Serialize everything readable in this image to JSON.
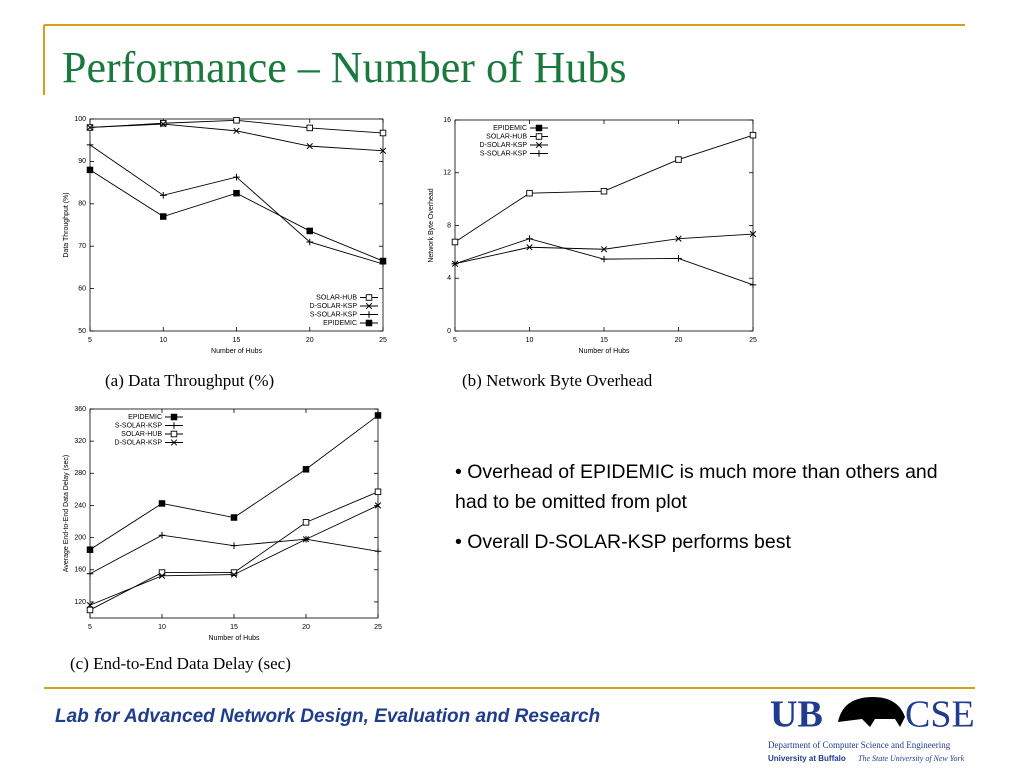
{
  "slide": {
    "title": "Performance – Number of Hubs",
    "bullets": [
      "• Overhead of EPIDEMIC is much more than others and had to be omitted from plot",
      "• Overall D-SOLAR-KSP performs best"
    ],
    "footer": "Lab for Advanced Network Design, Evaluation and Research",
    "logo": {
      "left": "UB",
      "right": "CSE",
      "department": "Department of Computer Science and Engineering",
      "university": "University at Buffalo",
      "state": "The State University of New York"
    }
  },
  "chart_data": [
    {
      "type": "line",
      "title": "(a) Data Throughput (%)",
      "x_label": "Number of Hubs",
      "y_label": "Data Throughput (%)",
      "x": [
        5,
        10,
        15,
        20,
        25
      ],
      "xlim": [
        5,
        25
      ],
      "xticks": [
        5,
        10,
        15,
        20,
        25
      ],
      "ylim": [
        50,
        100
      ],
      "yticks": [
        50,
        60,
        70,
        80,
        90,
        100
      ],
      "legend": "lower right",
      "series": [
        {
          "name": "SOLAR-HUB",
          "color": "#000000",
          "marker": "square-open",
          "values": [
            98,
            99,
            99.7,
            97.9,
            96.7
          ]
        },
        {
          "name": "D-SOLAR-KSP",
          "color": "#000000",
          "marker": "x",
          "values": [
            98,
            98.8,
            97.2,
            93.6,
            92.5
          ]
        },
        {
          "name": "S-SOLAR-KSP",
          "color": "#000000",
          "marker": "plus",
          "values": [
            93.9,
            82,
            86.3,
            71,
            65.8
          ]
        },
        {
          "name": "EPIDEMIC",
          "color": "#000000",
          "marker": "square",
          "values": [
            88,
            77,
            82.5,
            73.6,
            66.5
          ]
        }
      ]
    },
    {
      "type": "line",
      "title": "(b) Network Byte Overhead",
      "x_label": "Number of Hubs",
      "y_label": "Network Byte Overhead",
      "x": [
        5,
        10,
        15,
        20,
        25
      ],
      "xlim": [
        5,
        25
      ],
      "xticks": [
        5,
        10,
        15,
        20,
        25
      ],
      "ylim": [
        0,
        16
      ],
      "yticks": [
        0,
        4,
        8,
        12,
        16
      ],
      "legend": "upper left",
      "series": [
        {
          "name": "EPIDEMIC",
          "color": "#000000",
          "marker": "square",
          "values": [
            null,
            null,
            null,
            null,
            null
          ]
        },
        {
          "name": "SOLAR-HUB",
          "color": "#000000",
          "marker": "square-open",
          "values": [
            6.75,
            10.45,
            10.6,
            13,
            14.85
          ]
        },
        {
          "name": "D-SOLAR-KSP",
          "color": "#000000",
          "marker": "x",
          "values": [
            5.1,
            6.35,
            6.2,
            7,
            7.35
          ]
        },
        {
          "name": "S-SOLAR-KSP",
          "color": "#000000",
          "marker": "plus",
          "values": [
            5.1,
            7,
            5.45,
            5.5,
            3.5
          ]
        }
      ]
    },
    {
      "type": "line",
      "title": "(c) End-to-End Data Delay (sec)",
      "x_label": "Number of Hubs",
      "y_label": "Average End-to-End Data Delay (sec)",
      "x": [
        5,
        10,
        15,
        20,
        25
      ],
      "xlim": [
        5,
        25
      ],
      "xticks": [
        5,
        10,
        15,
        20,
        25
      ],
      "ylim": [
        100,
        360
      ],
      "yticks": [
        120,
        160,
        200,
        240,
        280,
        320,
        360
      ],
      "legend": "upper left",
      "series": [
        {
          "name": "EPIDEMIC",
          "color": "#000000",
          "marker": "square",
          "values": [
            185,
            242.5,
            225,
            285,
            352
          ]
        },
        {
          "name": "S-SOLAR-KSP",
          "color": "#000000",
          "marker": "plus",
          "values": [
            155,
            203,
            190,
            198,
            183
          ]
        },
        {
          "name": "SOLAR-HUB",
          "color": "#000000",
          "marker": "square-open",
          "values": [
            110,
            156.5,
            156.5,
            219,
            257
          ]
        },
        {
          "name": "D-SOLAR-KSP",
          "color": "#000000",
          "marker": "x",
          "values": [
            116,
            152.5,
            154,
            198,
            240
          ]
        }
      ]
    }
  ]
}
